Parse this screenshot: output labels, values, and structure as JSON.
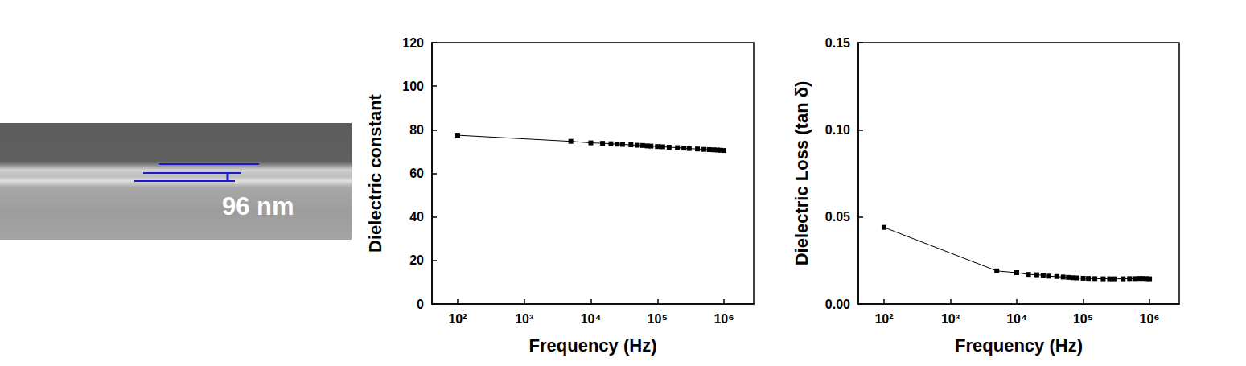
{
  "sem_image": {
    "label": "96 nm"
  },
  "chart_data": [
    {
      "type": "line",
      "x_label": "Frequency (Hz)",
      "y_label": "Dielectric constant",
      "log": "x",
      "grid": false,
      "marker": "square",
      "line_style": "solid",
      "color": "#000000",
      "xlim": [
        41,
        2800000
      ],
      "xticks": [
        {
          "value": 100,
          "label": "10²"
        },
        {
          "value": 1000,
          "label": "10³"
        },
        {
          "value": 10000,
          "label": "10⁴"
        },
        {
          "value": 100000,
          "label": "10⁵"
        },
        {
          "value": 1000000,
          "label": "10⁶"
        }
      ],
      "ylim": [
        0,
        120
      ],
      "yticks": [
        0,
        20,
        40,
        60,
        80,
        100,
        120
      ],
      "x": [
        100,
        5000,
        10000,
        15000,
        20000,
        25000,
        30000,
        40000,
        50000,
        60000,
        70000,
        80000,
        100000,
        120000,
        150000,
        200000,
        250000,
        300000,
        400000,
        500000,
        600000,
        700000,
        800000,
        900000,
        1000000
      ],
      "values": [
        77.5,
        74.7,
        74.0,
        73.8,
        73.6,
        73.4,
        73.3,
        73.1,
        72.9,
        72.8,
        72.6,
        72.5,
        72.3,
        72.2,
        72.0,
        71.8,
        71.6,
        71.4,
        71.2,
        71.0,
        70.9,
        70.8,
        70.7,
        70.6,
        70.5
      ]
    },
    {
      "type": "line",
      "x_label": "Frequency (Hz)",
      "y_label": "Dielectric Loss (tan δ)",
      "log": "x",
      "grid": false,
      "marker": "square",
      "line_style": "solid",
      "color": "#000000",
      "xlim": [
        41,
        2800000
      ],
      "xticks": [
        {
          "value": 100,
          "label": "10²"
        },
        {
          "value": 1000,
          "label": "10³"
        },
        {
          "value": 10000,
          "label": "10⁴"
        },
        {
          "value": 100000,
          "label": "10⁵"
        },
        {
          "value": 1000000,
          "label": "10⁶"
        }
      ],
      "ylim": [
        0,
        0.15
      ],
      "yticks": [
        {
          "value": 0,
          "label": "0.00"
        },
        0.05,
        {
          "value": 0.1,
          "label": "0.10"
        },
        0.15
      ],
      "x": [
        100,
        5000,
        10000,
        15000,
        20000,
        25000,
        30000,
        40000,
        50000,
        60000,
        70000,
        80000,
        100000,
        120000,
        150000,
        200000,
        250000,
        300000,
        400000,
        500000,
        600000,
        700000,
        800000,
        900000,
        1000000
      ],
      "values": [
        0.044,
        0.019,
        0.018,
        0.017,
        0.0168,
        0.0165,
        0.016,
        0.0158,
        0.0155,
        0.0153,
        0.0151,
        0.015,
        0.0148,
        0.0147,
        0.0146,
        0.0145,
        0.0145,
        0.0145,
        0.0145,
        0.0146,
        0.0146,
        0.0147,
        0.0147,
        0.0146,
        0.0145
      ]
    }
  ]
}
